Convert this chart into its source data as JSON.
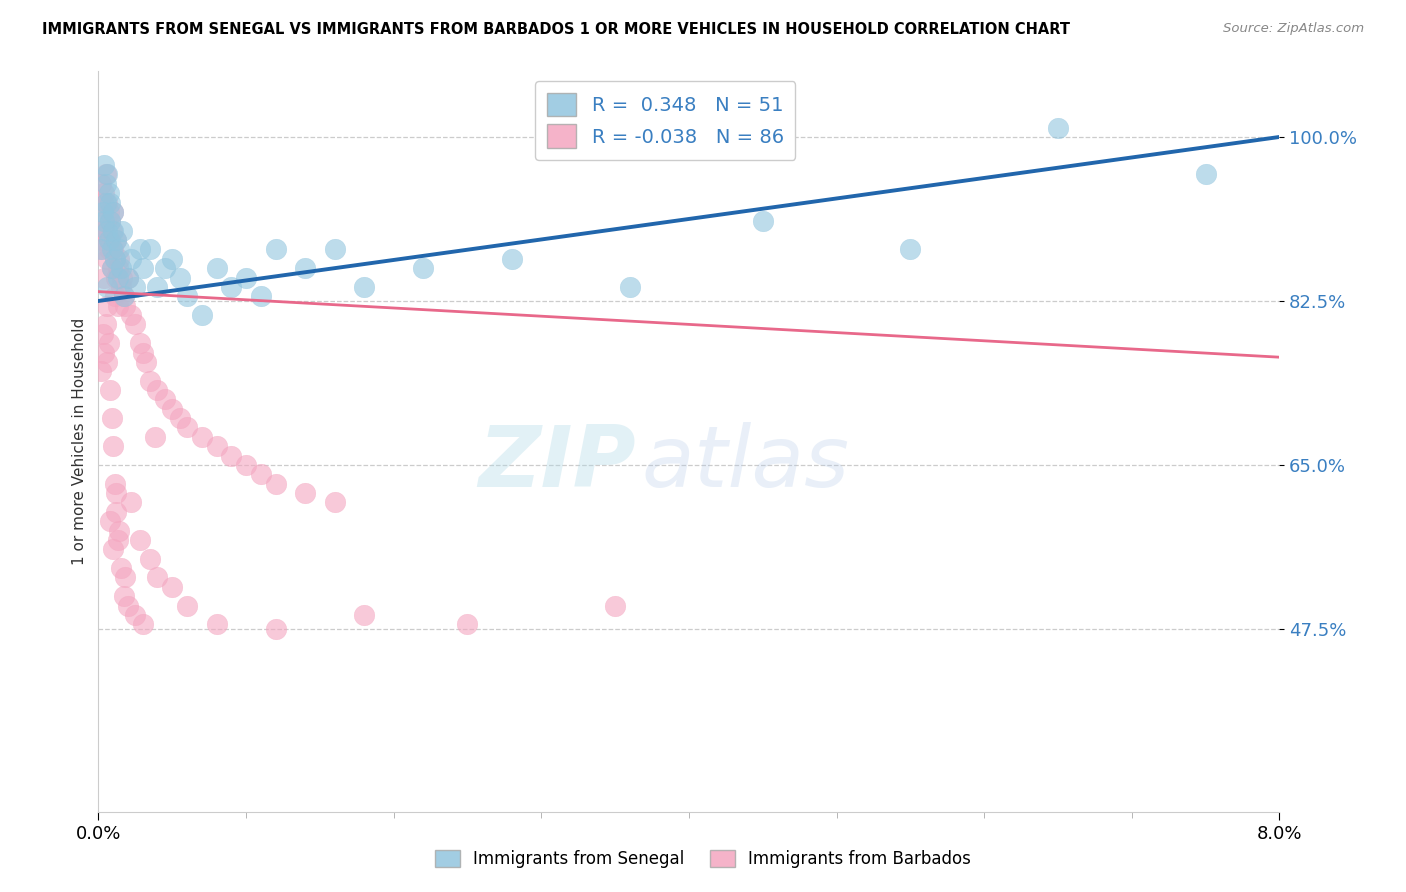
{
  "title": "IMMIGRANTS FROM SENEGAL VS IMMIGRANTS FROM BARBADOS 1 OR MORE VEHICLES IN HOUSEHOLD CORRELATION CHART",
  "source": "Source: ZipAtlas.com",
  "ylabel": "1 or more Vehicles in Household",
  "yticks": [
    47.5,
    65.0,
    82.5,
    100.0
  ],
  "xlim": [
    0.0,
    8.0
  ],
  "ylim": [
    28.0,
    107.0
  ],
  "senegal_color": "#92c5de",
  "barbados_color": "#f4a6c0",
  "senegal_line_color": "#2166ac",
  "barbados_line_color": "#e8688a",
  "senegal_label": "Immigrants from Senegal",
  "barbados_label": "Immigrants from Barbados",
  "R_senegal": 0.348,
  "N_senegal": 51,
  "R_barbados": -0.038,
  "N_barbados": 86,
  "watermark_zip": "ZIP",
  "watermark_atlas": "atlas",
  "trend_s_x0": 0.0,
  "trend_s_y0": 82.5,
  "trend_s_x1": 8.0,
  "trend_s_y1": 100.0,
  "trend_b_x0": 0.0,
  "trend_b_y0": 83.5,
  "trend_b_x1": 8.0,
  "trend_b_y1": 76.5,
  "senegal_x": [
    0.02,
    0.03,
    0.04,
    0.05,
    0.05,
    0.06,
    0.06,
    0.07,
    0.07,
    0.08,
    0.08,
    0.09,
    0.09,
    0.1,
    0.1,
    0.11,
    0.12,
    0.13,
    0.14,
    0.15,
    0.16,
    0.17,
    0.2,
    0.22,
    0.25,
    0.28,
    0.3,
    0.35,
    0.4,
    0.45,
    0.5,
    0.55,
    0.6,
    0.7,
    0.8,
    0.9,
    1.0,
    1.1,
    1.2,
    1.4,
    1.6,
    1.8,
    2.2,
    2.8,
    3.6,
    4.5,
    5.5,
    6.5,
    7.5,
    0.04,
    0.06
  ],
  "senegal_y": [
    88.0,
    92.0,
    91.0,
    95.0,
    93.0,
    96.0,
    90.0,
    94.0,
    89.0,
    93.0,
    91.0,
    88.0,
    86.0,
    92.0,
    90.0,
    87.0,
    89.0,
    85.0,
    88.0,
    86.0,
    90.0,
    83.0,
    85.0,
    87.0,
    84.0,
    88.0,
    86.0,
    88.0,
    84.0,
    86.0,
    87.0,
    85.0,
    83.0,
    81.0,
    86.0,
    84.0,
    85.0,
    83.0,
    88.0,
    86.0,
    88.0,
    84.0,
    86.0,
    87.0,
    84.0,
    91.0,
    88.0,
    101.0,
    96.0,
    97.0,
    84.0
  ],
  "barbados_x": [
    0.01,
    0.02,
    0.02,
    0.03,
    0.03,
    0.04,
    0.04,
    0.05,
    0.05,
    0.06,
    0.06,
    0.07,
    0.07,
    0.08,
    0.08,
    0.09,
    0.09,
    0.1,
    0.1,
    0.11,
    0.11,
    0.12,
    0.12,
    0.13,
    0.13,
    0.14,
    0.15,
    0.16,
    0.17,
    0.18,
    0.2,
    0.22,
    0.25,
    0.28,
    0.3,
    0.32,
    0.35,
    0.4,
    0.45,
    0.5,
    0.55,
    0.6,
    0.7,
    0.8,
    0.9,
    1.0,
    1.1,
    1.2,
    1.4,
    1.6,
    0.02,
    0.03,
    0.04,
    0.04,
    0.05,
    0.06,
    0.06,
    0.07,
    0.08,
    0.09,
    0.1,
    0.11,
    0.12,
    0.13,
    0.15,
    0.17,
    0.2,
    0.25,
    0.3,
    0.35,
    0.4,
    0.5,
    0.6,
    0.8,
    1.2,
    1.8,
    2.5,
    3.5,
    0.08,
    0.1,
    0.12,
    0.14,
    0.18,
    0.22,
    0.28,
    0.38
  ],
  "barbados_y": [
    90.0,
    95.0,
    88.0,
    93.0,
    89.0,
    94.0,
    90.0,
    96.0,
    91.0,
    93.0,
    87.0,
    92.0,
    88.0,
    91.0,
    89.0,
    90.0,
    86.0,
    92.0,
    88.0,
    87.0,
    83.0,
    89.0,
    85.0,
    86.0,
    82.0,
    87.0,
    84.0,
    85.0,
    83.0,
    82.0,
    85.0,
    81.0,
    80.0,
    78.0,
    77.0,
    76.0,
    74.0,
    73.0,
    72.0,
    71.0,
    70.0,
    69.0,
    68.0,
    67.0,
    66.0,
    65.0,
    64.0,
    63.0,
    62.0,
    61.0,
    75.0,
    79.0,
    77.0,
    85.0,
    80.0,
    76.0,
    82.0,
    78.0,
    73.0,
    70.0,
    67.0,
    63.0,
    60.0,
    57.0,
    54.0,
    51.0,
    50.0,
    49.0,
    48.0,
    55.0,
    53.0,
    52.0,
    50.0,
    48.0,
    47.5,
    49.0,
    48.0,
    50.0,
    59.0,
    56.0,
    62.0,
    58.0,
    53.0,
    61.0,
    57.0,
    68.0
  ]
}
